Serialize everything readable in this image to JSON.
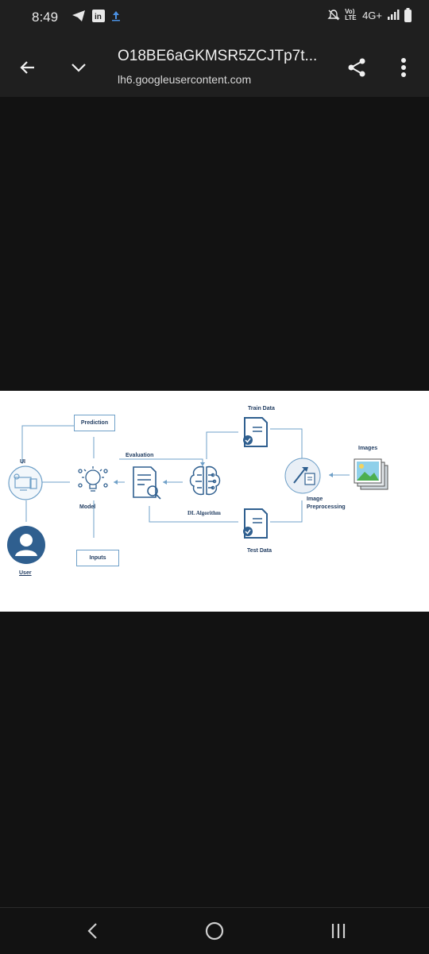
{
  "status_bar": {
    "time": "8:49",
    "network": "4G+",
    "volte": "Vo) LTE",
    "icons": [
      "telegram-icon",
      "linkedin-icon",
      "upload-icon",
      "mute-icon",
      "signal-icon",
      "battery-icon"
    ]
  },
  "toolbar": {
    "title": "O18BE6aGKMSR5ZCJTp7t...",
    "subtitle": "lh6.googleusercontent.com",
    "icons": [
      "back-arrow-icon",
      "chevron-down-icon",
      "share-icon",
      "more-vert-icon"
    ]
  },
  "diagram": {
    "labels": {
      "ui": "UI",
      "user": "User",
      "prediction": "Prediction",
      "model": "Model",
      "inputs": "Inputs",
      "evaluation": "Evaluation",
      "dl_algorithm": "DL Algorithm",
      "train_data": "Train Data",
      "test_data": "Test Data",
      "image_preprocessing_1": "Image",
      "image_preprocessing_2": "Preprocessing",
      "images": "Images"
    },
    "colors": {
      "accent": "#2f5f8f",
      "line": "#6fa0c8"
    }
  },
  "bottom_nav": {
    "icons": [
      "back-nav-icon",
      "home-nav-icon",
      "recents-nav-icon"
    ]
  }
}
